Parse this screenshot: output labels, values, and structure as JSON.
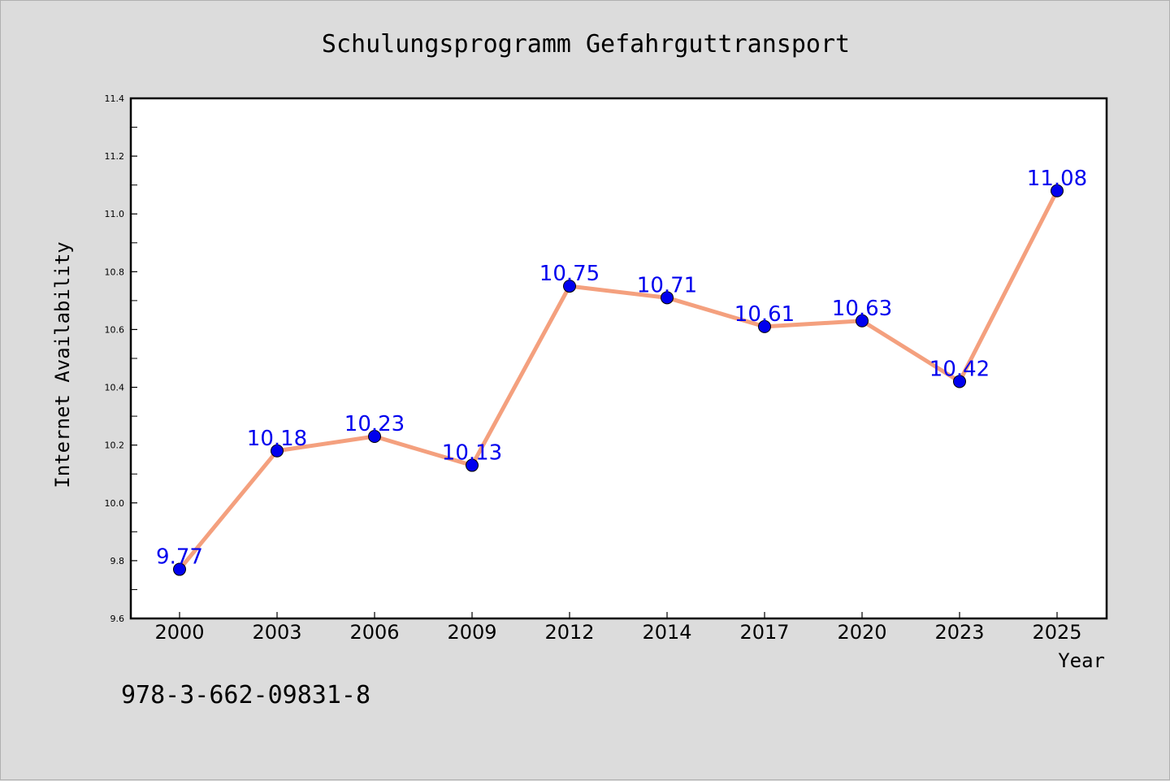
{
  "chart_data": {
    "type": "line",
    "title": "Schulungsprogramm Gefahrguttransport",
    "xlabel": "Year",
    "ylabel": "Internet Availability",
    "categories": [
      "2000",
      "2003",
      "2006",
      "2009",
      "2012",
      "2014",
      "2017",
      "2020",
      "2023",
      "2025"
    ],
    "series": [
      {
        "values": [
          9.77,
          10.18,
          10.23,
          10.13,
          10.75,
          10.71,
          10.61,
          10.63,
          10.42,
          11.08
        ],
        "value_labels": [
          "9.77",
          "10.18",
          "10.23",
          "10.13",
          "10.75",
          "10.71",
          "10.61",
          "10.63",
          "10.42",
          "11.08"
        ],
        "line_color": "#f4a07e",
        "marker_color": "#0000ee",
        "label_color": "#0000ee"
      }
    ],
    "ylim": [
      9.6,
      11.4
    ],
    "y_ticks": [
      "9.6",
      "9.8",
      "10.0",
      "10.2",
      "10.4",
      "10.6",
      "10.8",
      "11.0",
      "11.2",
      "11.4"
    ],
    "grid": false,
    "legend": "none",
    "background_color": "#dcdcdc",
    "plot_background_color": "#ffffff"
  },
  "annotation": {
    "isbn": "978-3-662-09831-8"
  }
}
